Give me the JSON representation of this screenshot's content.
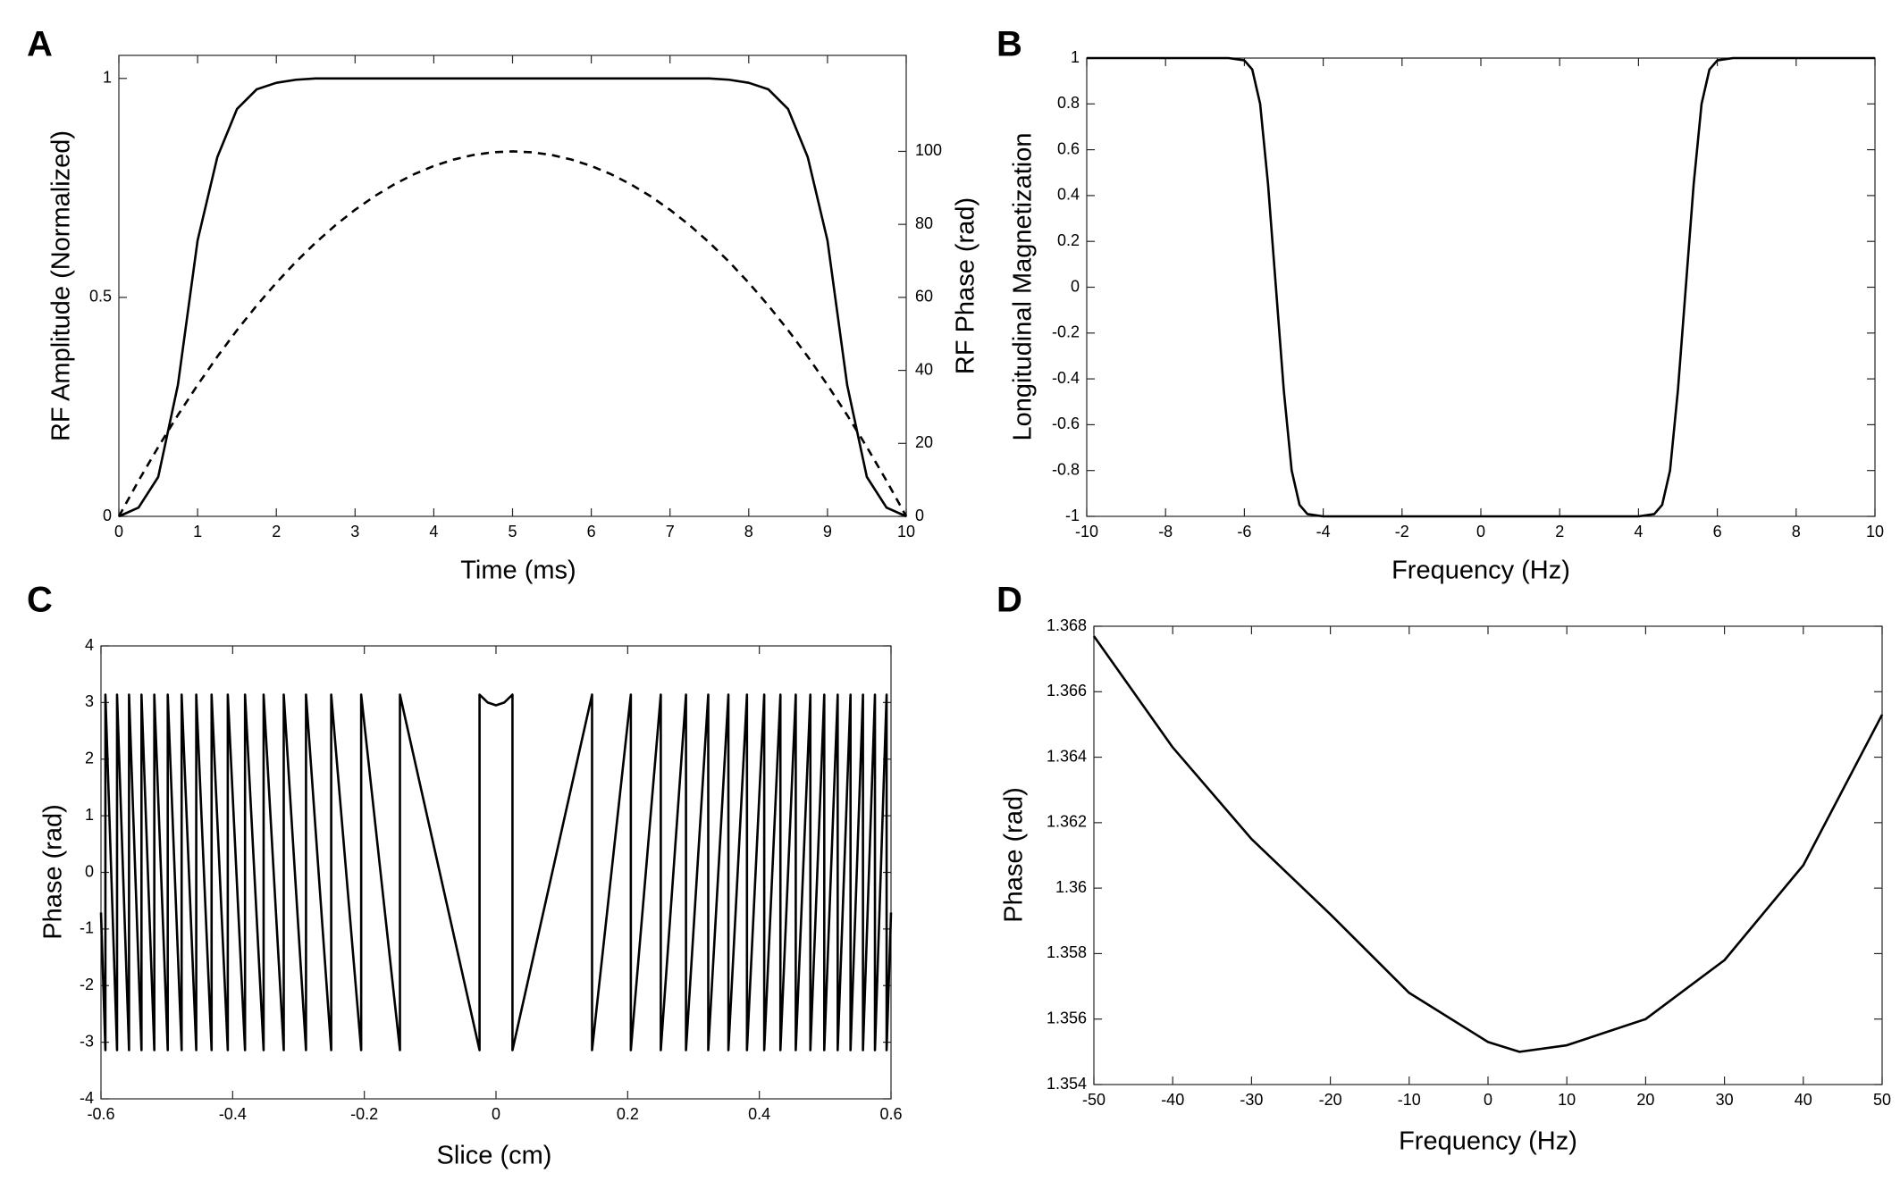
{
  "chart_data": [
    {
      "type": "line",
      "label": "A",
      "xlabel": "Time (ms)",
      "ylabel": "RF Amplitude (Normalized)",
      "y2label": "RF Phase (rad)",
      "x": [
        0,
        0.25,
        0.5,
        0.75,
        1,
        1.25,
        1.5,
        1.75,
        2,
        2.25,
        2.5,
        2.75,
        3,
        3.25,
        3.5,
        3.75,
        4,
        4.25,
        4.5,
        4.75,
        5,
        5.25,
        5.5,
        5.75,
        6,
        6.25,
        6.5,
        6.75,
        7,
        7.25,
        7.5,
        7.75,
        8,
        8.25,
        8.5,
        8.75,
        9,
        9.25,
        9.5,
        9.75,
        10
      ],
      "series": [
        {
          "color": "#000000",
          "dash": false,
          "values": [
            0,
            0.02,
            0.09,
            0.3,
            0.63,
            0.82,
            0.93,
            0.975,
            0.99,
            0.997,
            1,
            1,
            1,
            1,
            1,
            1,
            1,
            1,
            1,
            1,
            1,
            1,
            1,
            1,
            1,
            1,
            1,
            1,
            1,
            1,
            1,
            0.997,
            0.99,
            0.975,
            0.93,
            0.82,
            0.63,
            0.3,
            0.09,
            0.02,
            0
          ]
        },
        {
          "color": "#000000",
          "dash": true,
          "axis": "y2",
          "values": [
            0,
            9.75,
            19,
            27.75,
            36,
            43.75,
            51,
            57.75,
            64,
            69.75,
            75,
            79.75,
            84,
            87.75,
            91,
            93.75,
            96,
            97.75,
            99,
            99.75,
            100,
            99.75,
            99,
            97.75,
            96,
            93.75,
            91,
            87.75,
            84,
            79.75,
            75,
            69.75,
            64,
            57.75,
            51,
            43.75,
            36,
            27.75,
            19,
            9.75,
            0
          ]
        }
      ],
      "xlim": [
        0,
        10
      ],
      "xticks": [
        0,
        1,
        2,
        3,
        4,
        5,
        6,
        7,
        8,
        9,
        10
      ],
      "ylim": [
        0,
        1.0526
      ],
      "yticks": [
        0,
        0.5,
        1
      ],
      "y2lim": [
        0,
        126.3
      ],
      "y2ticks": [
        0,
        20,
        40,
        60,
        80,
        100
      ]
    },
    {
      "type": "line",
      "label": "B",
      "xlabel": "Frequency (Hz)",
      "ylabel": "Longitudinal Magnetization",
      "x": [
        -10,
        -6.4,
        -6,
        -5.8,
        -5.6,
        -5.4,
        -5.2,
        -5,
        -4.8,
        -4.6,
        -4.4,
        -4,
        4,
        4.4,
        4.6,
        4.8,
        5,
        5.2,
        5.4,
        5.6,
        5.8,
        6,
        6.4,
        10
      ],
      "series": [
        {
          "color": "#000000",
          "dash": false,
          "values": [
            1,
            1,
            0.99,
            0.95,
            0.8,
            0.45,
            0,
            -0.45,
            -0.8,
            -0.95,
            -0.99,
            -1,
            -1,
            -0.99,
            -0.95,
            -0.8,
            -0.45,
            0,
            0.45,
            0.8,
            0.95,
            0.99,
            1,
            1
          ]
        }
      ],
      "xlim": [
        -10,
        10
      ],
      "xticks": [
        -10,
        -8,
        -6,
        -4,
        -2,
        0,
        2,
        4,
        6,
        8,
        10
      ],
      "ylim": [
        -1,
        1
      ],
      "yticks": [
        -1,
        -0.8,
        -0.6,
        -0.4,
        -0.2,
        0,
        0.2,
        0.4,
        0.6,
        0.8,
        1
      ]
    },
    {
      "type": "line",
      "label": "C",
      "xlabel": "Slice (cm)",
      "ylabel": "Phase (rad)",
      "x": [
        -0.6,
        -0.5933,
        -0.5933,
        -0.5756,
        -0.5756,
        -0.5574,
        -0.5574,
        -0.5385,
        -0.5385,
        -0.519,
        -0.519,
        -0.4986,
        -0.4986,
        -0.4775,
        -0.4775,
        -0.4553,
        -0.4553,
        -0.432,
        -0.432,
        -0.4074,
        -0.4074,
        -0.3812,
        -0.3812,
        -0.353,
        -0.353,
        -0.3224,
        -0.3224,
        -0.2886,
        -0.2886,
        -0.2503,
        -0.2503,
        -0.2048,
        -0.2048,
        -0.1459,
        -0.1459,
        -0.025,
        -0.025,
        -0.0125,
        0,
        0.0125,
        0.025,
        0.025,
        0.1459,
        0.1459,
        0.2048,
        0.2048,
        0.2503,
        0.2503,
        0.2886,
        0.2886,
        0.3224,
        0.3224,
        0.353,
        0.353,
        0.3812,
        0.3812,
        0.4074,
        0.4074,
        0.432,
        0.432,
        0.4553,
        0.4553,
        0.4775,
        0.4775,
        0.4986,
        0.4986,
        0.519,
        0.519,
        0.5385,
        0.5385,
        0.5574,
        0.5574,
        0.5756,
        0.5756,
        0.5933,
        0.5933,
        0.6
      ],
      "series": [
        {
          "color": "#000000",
          "dash": false,
          "values": [
            -0.71,
            -3.14,
            3.14,
            -3.14,
            3.14,
            -3.14,
            3.14,
            -3.14,
            3.14,
            -3.14,
            3.14,
            -3.14,
            3.14,
            -3.14,
            3.14,
            -3.14,
            3.14,
            -3.14,
            3.14,
            -3.14,
            3.14,
            -3.14,
            3.14,
            -3.14,
            3.14,
            -3.14,
            3.14,
            -3.14,
            3.14,
            -3.14,
            3.14,
            -3.14,
            3.14,
            -3.14,
            3.14,
            -3.14,
            3.14,
            3.0,
            2.95,
            3.0,
            3.14,
            -3.14,
            3.14,
            -3.14,
            3.14,
            -3.14,
            3.14,
            -3.14,
            3.14,
            -3.14,
            3.14,
            -3.14,
            3.14,
            -3.14,
            3.14,
            -3.14,
            3.14,
            -3.14,
            3.14,
            -3.14,
            3.14,
            -3.14,
            3.14,
            -3.14,
            3.14,
            -3.14,
            3.14,
            -3.14,
            3.14,
            -3.14,
            3.14,
            -3.14,
            3.14,
            -3.14,
            3.14,
            -3.14,
            -0.71
          ]
        }
      ],
      "xlim": [
        -0.6,
        0.6
      ],
      "xticks": [
        -0.6,
        -0.4,
        -0.2,
        0,
        0.2,
        0.4,
        0.6
      ],
      "ylim": [
        -4,
        4
      ],
      "yticks": [
        -4,
        -3,
        -2,
        -1,
        0,
        1,
        2,
        3,
        4
      ]
    },
    {
      "type": "line",
      "label": "D",
      "xlabel": "Frequency (Hz)",
      "ylabel": "Phase (rad)",
      "x": [
        -50,
        -40,
        -30,
        -20,
        -10,
        0,
        4,
        10,
        20,
        30,
        40,
        50
      ],
      "series": [
        {
          "color": "#000000",
          "dash": false,
          "values": [
            1.3677,
            1.3643,
            1.3615,
            1.3592,
            1.3568,
            1.3553,
            1.355,
            1.3552,
            1.356,
            1.3578,
            1.3607,
            1.3653
          ]
        }
      ],
      "xlim": [
        -50,
        50
      ],
      "xticks": [
        -50,
        -40,
        -30,
        -20,
        -10,
        0,
        10,
        20,
        30,
        40,
        50
      ],
      "ylim": [
        1.354,
        1.368
      ],
      "yticks": [
        1.354,
        1.356,
        1.358,
        1.36,
        1.362,
        1.364,
        1.366,
        1.368
      ]
    }
  ]
}
